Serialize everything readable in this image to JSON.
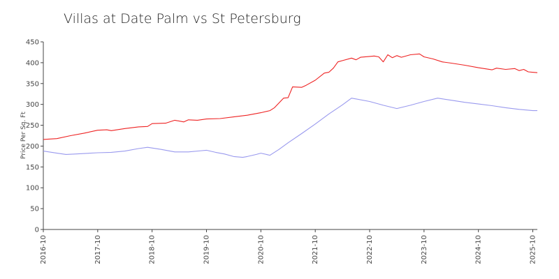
{
  "chart_data": {
    "type": "line",
    "title": "Villas at Date Palm vs St Petersburg",
    "xlabel": "",
    "ylabel": "Price Per Sq. Ft",
    "ylim": [
      0,
      450
    ],
    "yticks": [
      0,
      50,
      100,
      150,
      200,
      250,
      300,
      350,
      400,
      450
    ],
    "xlim": [
      "2016-10",
      "2025-11"
    ],
    "xticks": [
      "2016-10",
      "2017-10",
      "2018-10",
      "2019-10",
      "2020-10",
      "2021-10",
      "2022-10",
      "2023-10",
      "2024-10",
      "2025-10"
    ],
    "grid": false,
    "legend": "none",
    "series": [
      {
        "color": "#ee2222",
        "points": [
          [
            "2016-10",
            216
          ],
          [
            "2017-01",
            218
          ],
          [
            "2017-04",
            225
          ],
          [
            "2017-07",
            231
          ],
          [
            "2017-10",
            238
          ],
          [
            "2017-12",
            239
          ],
          [
            "2018-01",
            237
          ],
          [
            "2018-04",
            242
          ],
          [
            "2018-07",
            246
          ],
          [
            "2018-09",
            247
          ],
          [
            "2018-10",
            254
          ],
          [
            "2019-01",
            255
          ],
          [
            "2019-03",
            262
          ],
          [
            "2019-05",
            258
          ],
          [
            "2019-06",
            263
          ],
          [
            "2019-08",
            262
          ],
          [
            "2019-10",
            265
          ],
          [
            "2020-01",
            266
          ],
          [
            "2020-04",
            270
          ],
          [
            "2020-07",
            274
          ],
          [
            "2020-10",
            280
          ],
          [
            "2020-12",
            285
          ],
          [
            "2021-01",
            292
          ],
          [
            "2021-03",
            315
          ],
          [
            "2021-04",
            316
          ],
          [
            "2021-05",
            342
          ],
          [
            "2021-07",
            341
          ],
          [
            "2021-08",
            346
          ],
          [
            "2021-10",
            358
          ],
          [
            "2021-12",
            375
          ],
          [
            "2022-01",
            377
          ],
          [
            "2022-02",
            387
          ],
          [
            "2022-03",
            402
          ],
          [
            "2022-04",
            405
          ],
          [
            "2022-06",
            411
          ],
          [
            "2022-07",
            407
          ],
          [
            "2022-08",
            413
          ],
          [
            "2022-10",
            415
          ],
          [
            "2022-11",
            416
          ],
          [
            "2022-12",
            414
          ],
          [
            "2023-01",
            402
          ],
          [
            "2023-02",
            419
          ],
          [
            "2023-03",
            412
          ],
          [
            "2023-04",
            417
          ],
          [
            "2023-05",
            413
          ],
          [
            "2023-07",
            419
          ],
          [
            "2023-09",
            421
          ],
          [
            "2023-10",
            414
          ],
          [
            "2023-12",
            409
          ],
          [
            "2024-02",
            402
          ],
          [
            "2024-04",
            399
          ],
          [
            "2024-07",
            394
          ],
          [
            "2024-10",
            388
          ],
          [
            "2025-01",
            383
          ],
          [
            "2025-02",
            387
          ],
          [
            "2025-04",
            384
          ],
          [
            "2025-06",
            386
          ],
          [
            "2025-07",
            381
          ],
          [
            "2025-08",
            384
          ],
          [
            "2025-09",
            378
          ],
          [
            "2025-11",
            376
          ]
        ]
      },
      {
        "color": "#9999ee",
        "points": [
          [
            "2016-10",
            188
          ],
          [
            "2017-01",
            183
          ],
          [
            "2017-03",
            180
          ],
          [
            "2017-05",
            181
          ],
          [
            "2017-10",
            184
          ],
          [
            "2018-01",
            185
          ],
          [
            "2018-04",
            188
          ],
          [
            "2018-07",
            194
          ],
          [
            "2018-09",
            197
          ],
          [
            "2018-12",
            192
          ],
          [
            "2019-03",
            186
          ],
          [
            "2019-06",
            186
          ],
          [
            "2019-09",
            189
          ],
          [
            "2019-10",
            190
          ],
          [
            "2019-12",
            185
          ],
          [
            "2020-02",
            181
          ],
          [
            "2020-04",
            175
          ],
          [
            "2020-06",
            173
          ],
          [
            "2020-07",
            175
          ],
          [
            "2020-09",
            180
          ],
          [
            "2020-10",
            183
          ],
          [
            "2020-12",
            178
          ],
          [
            "2021-02",
            192
          ],
          [
            "2021-04",
            208
          ],
          [
            "2021-07",
            230
          ],
          [
            "2021-10",
            253
          ],
          [
            "2022-01",
            277
          ],
          [
            "2022-04",
            299
          ],
          [
            "2022-06",
            315
          ],
          [
            "2022-10",
            307
          ],
          [
            "2023-01",
            298
          ],
          [
            "2023-04",
            290
          ],
          [
            "2023-07",
            298
          ],
          [
            "2023-10",
            307
          ],
          [
            "2024-01",
            315
          ],
          [
            "2024-04",
            310
          ],
          [
            "2024-07",
            305
          ],
          [
            "2024-10",
            301
          ],
          [
            "2025-01",
            297
          ],
          [
            "2025-04",
            292
          ],
          [
            "2025-07",
            288
          ],
          [
            "2025-10",
            285
          ],
          [
            "2025-11",
            285
          ]
        ]
      }
    ]
  }
}
